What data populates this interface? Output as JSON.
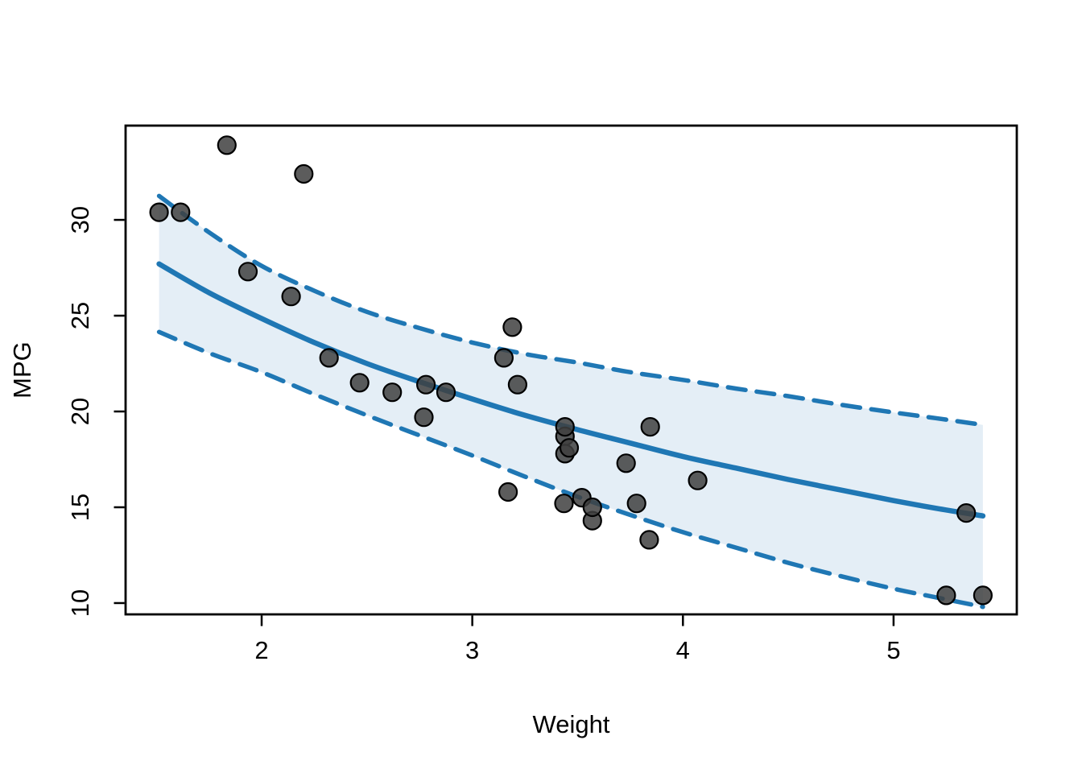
{
  "figure": {
    "background": "#ffffff"
  },
  "chart_data": {
    "type": "scatter",
    "title": "",
    "xlabel": "Weight",
    "ylabel": "MPG",
    "xlim": [
      1.354,
      5.585
    ],
    "ylim": [
      9.41,
      34.92
    ],
    "x_ticks": [
      2,
      3,
      4,
      5
    ],
    "y_ticks": [
      10,
      15,
      20,
      25,
      30
    ],
    "grid": false,
    "legend": "none",
    "points": {
      "x": [
        1.513,
        1.615,
        1.835,
        1.935,
        2.14,
        2.2,
        2.32,
        2.465,
        2.62,
        2.77,
        2.78,
        2.875,
        3.15,
        3.17,
        3.19,
        3.215,
        3.435,
        3.44,
        3.44,
        3.44,
        3.46,
        3.52,
        3.57,
        3.57,
        3.73,
        3.78,
        3.84,
        3.845,
        4.07,
        5.25,
        5.345,
        5.424
      ],
      "y": [
        30.4,
        30.4,
        33.9,
        27.3,
        26.0,
        32.4,
        22.8,
        21.5,
        21.0,
        19.7,
        21.4,
        21.0,
        22.8,
        15.8,
        24.4,
        21.4,
        15.2,
        18.7,
        19.2,
        17.8,
        18.1,
        15.5,
        14.3,
        15.0,
        17.3,
        15.2,
        13.3,
        19.2,
        16.4,
        10.4,
        14.7,
        10.4
      ]
    },
    "fit_line": {
      "x": [
        1.513,
        1.75,
        2.0,
        2.25,
        2.5,
        2.75,
        3.0,
        3.25,
        3.5,
        3.75,
        4.0,
        4.25,
        4.5,
        4.75,
        5.0,
        5.2,
        5.424
      ],
      "y": [
        27.7,
        26.2,
        24.85,
        23.6,
        22.5,
        21.55,
        20.65,
        19.8,
        19.05,
        18.35,
        17.65,
        17.05,
        16.45,
        15.9,
        15.35,
        14.95,
        14.55
      ]
    },
    "conf_band": {
      "x": [
        1.513,
        1.75,
        2.0,
        2.25,
        2.5,
        2.75,
        3.0,
        3.25,
        3.5,
        3.75,
        4.0,
        4.25,
        4.5,
        4.75,
        5.0,
        5.2,
        5.424
      ],
      "upper": [
        31.25,
        29.35,
        27.6,
        26.3,
        25.2,
        24.35,
        23.6,
        23.0,
        22.55,
        22.05,
        21.65,
        21.2,
        20.8,
        20.35,
        19.95,
        19.65,
        19.3
      ],
      "lower": [
        24.15,
        23.05,
        22.05,
        20.9,
        19.8,
        18.75,
        17.7,
        16.6,
        15.55,
        14.6,
        13.7,
        12.9,
        12.1,
        11.4,
        10.75,
        10.3,
        9.8
      ]
    },
    "style": {
      "line_color": "#1f77b4",
      "band_fill": "#e4eef6",
      "point_fill": "#3f3f3f",
      "point_stroke": "#000000",
      "axis_color": "#000000"
    }
  }
}
